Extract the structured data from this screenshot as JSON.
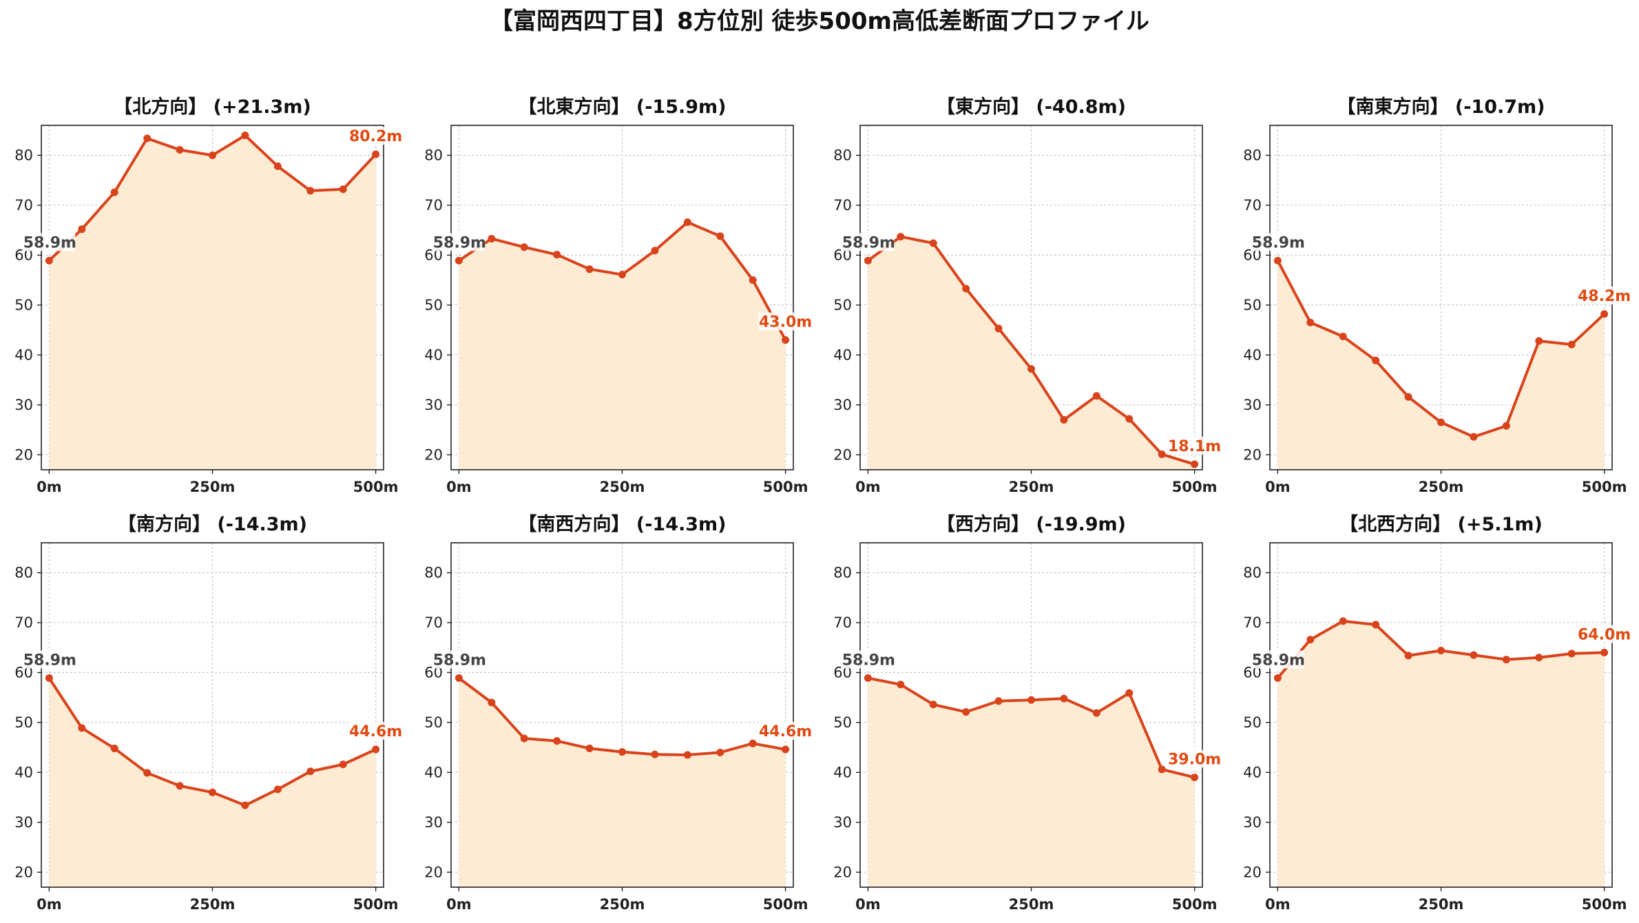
{
  "title": "【富岡西四丁目】8方位別 徒歩500m高低差断面プロファイル",
  "colors": {
    "line": "#d9431b",
    "fill": "#fdebd3",
    "grid": "#c8c8c8",
    "end_label": "#e04a10",
    "start_label": "#444444"
  },
  "chart_data": [
    {
      "type": "area",
      "title": "【北方向】 (+21.3m)",
      "x": [
        0,
        50,
        100,
        150,
        200,
        250,
        300,
        350,
        400,
        450,
        500
      ],
      "values": [
        58.9,
        65.2,
        72.6,
        83.4,
        81.1,
        80.0,
        84.0,
        77.8,
        72.9,
        73.2,
        80.2
      ],
      "start_label": "58.9m",
      "end_label": "80.2m",
      "xticks": [
        "0m",
        "250m",
        "500m"
      ],
      "yticks": [
        20,
        30,
        40,
        50,
        60,
        70,
        80
      ],
      "ylim": [
        17,
        86
      ],
      "xlim": [
        -12,
        512
      ],
      "grid": true
    },
    {
      "type": "area",
      "title": "【北東方向】 (-15.9m)",
      "x": [
        0,
        50,
        100,
        150,
        200,
        250,
        300,
        350,
        400,
        450,
        500
      ],
      "values": [
        58.9,
        63.3,
        61.6,
        60.1,
        57.2,
        56.1,
        60.9,
        66.6,
        63.8,
        55.0,
        43.0
      ],
      "start_label": "58.9m",
      "end_label": "43.0m",
      "xticks": [
        "0m",
        "250m",
        "500m"
      ],
      "yticks": [
        20,
        30,
        40,
        50,
        60,
        70,
        80
      ],
      "ylim": [
        17,
        86
      ],
      "xlim": [
        -12,
        512
      ],
      "grid": true
    },
    {
      "type": "area",
      "title": "【東方向】 (-40.8m)",
      "x": [
        0,
        50,
        100,
        150,
        200,
        250,
        300,
        350,
        400,
        450,
        500
      ],
      "values": [
        58.9,
        63.7,
        62.4,
        53.3,
        45.3,
        37.2,
        27.0,
        31.8,
        27.2,
        20.1,
        18.1
      ],
      "start_label": "58.9m",
      "end_label": "18.1m",
      "xticks": [
        "0m",
        "250m",
        "500m"
      ],
      "yticks": [
        20,
        30,
        40,
        50,
        60,
        70,
        80
      ],
      "ylim": [
        17,
        86
      ],
      "xlim": [
        -12,
        512
      ],
      "grid": true
    },
    {
      "type": "area",
      "title": "【南東方向】 (-10.7m)",
      "x": [
        0,
        50,
        100,
        150,
        200,
        250,
        300,
        350,
        400,
        450,
        500
      ],
      "values": [
        58.9,
        46.5,
        43.7,
        38.9,
        31.6,
        26.5,
        23.6,
        25.8,
        42.8,
        42.1,
        48.2
      ],
      "start_label": "58.9m",
      "end_label": "48.2m",
      "xticks": [
        "0m",
        "250m",
        "500m"
      ],
      "yticks": [
        20,
        30,
        40,
        50,
        60,
        70,
        80
      ],
      "ylim": [
        17,
        86
      ],
      "xlim": [
        -12,
        512
      ],
      "grid": true
    },
    {
      "type": "area",
      "title": "【南方向】 (-14.3m)",
      "x": [
        0,
        50,
        100,
        150,
        200,
        250,
        300,
        350,
        400,
        450,
        500
      ],
      "values": [
        58.9,
        48.9,
        44.8,
        39.9,
        37.3,
        36.0,
        33.4,
        36.6,
        40.2,
        41.6,
        44.6
      ],
      "start_label": "58.9m",
      "end_label": "44.6m",
      "xticks": [
        "0m",
        "250m",
        "500m"
      ],
      "yticks": [
        20,
        30,
        40,
        50,
        60,
        70,
        80
      ],
      "ylim": [
        17,
        86
      ],
      "xlim": [
        -12,
        512
      ],
      "grid": true
    },
    {
      "type": "area",
      "title": "【南西方向】 (-14.3m)",
      "x": [
        0,
        50,
        100,
        150,
        200,
        250,
        300,
        350,
        400,
        450,
        500
      ],
      "values": [
        58.9,
        54.0,
        46.8,
        46.3,
        44.8,
        44.1,
        43.6,
        43.5,
        44.0,
        45.8,
        44.6
      ],
      "start_label": "58.9m",
      "end_label": "44.6m",
      "xticks": [
        "0m",
        "250m",
        "500m"
      ],
      "yticks": [
        20,
        30,
        40,
        50,
        60,
        70,
        80
      ],
      "ylim": [
        17,
        86
      ],
      "xlim": [
        -12,
        512
      ],
      "grid": true
    },
    {
      "type": "area",
      "title": "【西方向】 (-19.9m)",
      "x": [
        0,
        50,
        100,
        150,
        200,
        250,
        300,
        350,
        400,
        450,
        500
      ],
      "values": [
        58.9,
        57.6,
        53.6,
        52.1,
        54.3,
        54.5,
        54.8,
        51.9,
        55.9,
        40.6,
        39.0
      ],
      "start_label": "58.9m",
      "end_label": "39.0m",
      "xticks": [
        "0m",
        "250m",
        "500m"
      ],
      "yticks": [
        20,
        30,
        40,
        50,
        60,
        70,
        80
      ],
      "ylim": [
        17,
        86
      ],
      "xlim": [
        -12,
        512
      ],
      "grid": true
    },
    {
      "type": "area",
      "title": "【北西方向】 (+5.1m)",
      "x": [
        0,
        50,
        100,
        150,
        200,
        250,
        300,
        350,
        400,
        450,
        500
      ],
      "values": [
        58.9,
        66.6,
        70.3,
        69.6,
        63.4,
        64.4,
        63.5,
        62.6,
        63.0,
        63.8,
        64.0
      ],
      "start_label": "58.9m",
      "end_label": "64.0m",
      "xticks": [
        "0m",
        "250m",
        "500m"
      ],
      "yticks": [
        20,
        30,
        40,
        50,
        60,
        70,
        80
      ],
      "ylim": [
        17,
        86
      ],
      "xlim": [
        -12,
        512
      ],
      "grid": true
    }
  ]
}
